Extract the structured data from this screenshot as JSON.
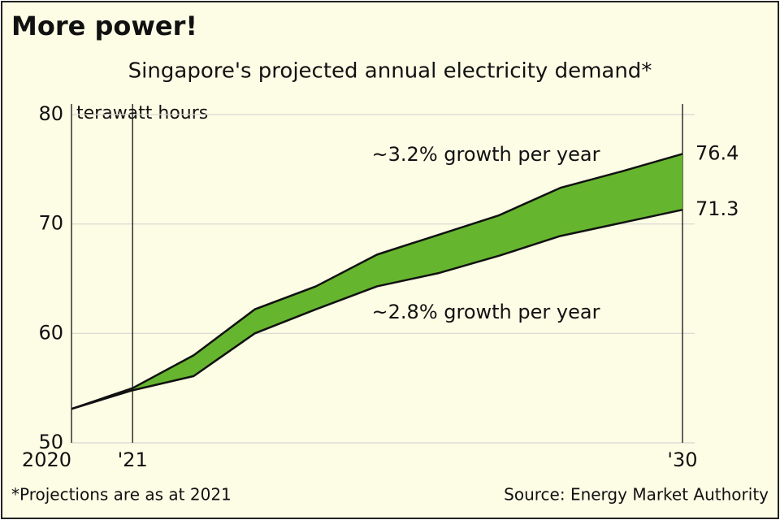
{
  "chart_data": {
    "type": "band",
    "title": "More power!",
    "subtitle": "Singapore's projected annual electricity demand*",
    "y_label": "terawatt hours",
    "x": [
      2020,
      2021,
      2022,
      2023,
      2024,
      2025,
      2026,
      2027,
      2028,
      2029,
      2030
    ],
    "series": [
      {
        "name": "~3.2% growth per year",
        "color": "#111111",
        "values": [
          53.1,
          55.0,
          58.0,
          62.2,
          64.3,
          67.2,
          69.0,
          70.8,
          73.3,
          74.8,
          76.4
        ]
      },
      {
        "name": "~2.8% growth per year",
        "color": "#111111",
        "values": [
          53.1,
          54.8,
          56.1,
          60.0,
          62.2,
          64.3,
          65.5,
          67.1,
          68.9,
          70.1,
          71.3
        ]
      }
    ],
    "band_color": "#66b52f",
    "xlim": [
      2020,
      2030
    ],
    "xticks": [
      {
        "value": 2020,
        "label": "2020"
      },
      {
        "value": 2021,
        "label": "'21"
      },
      {
        "value": 2030,
        "label": "'30"
      }
    ],
    "ylim": [
      50,
      80
    ],
    "yticks": [
      50,
      60,
      70,
      80
    ],
    "grid": true,
    "footnote": "*Projections are as at 2021",
    "source": "Source: Energy Market Authority"
  }
}
